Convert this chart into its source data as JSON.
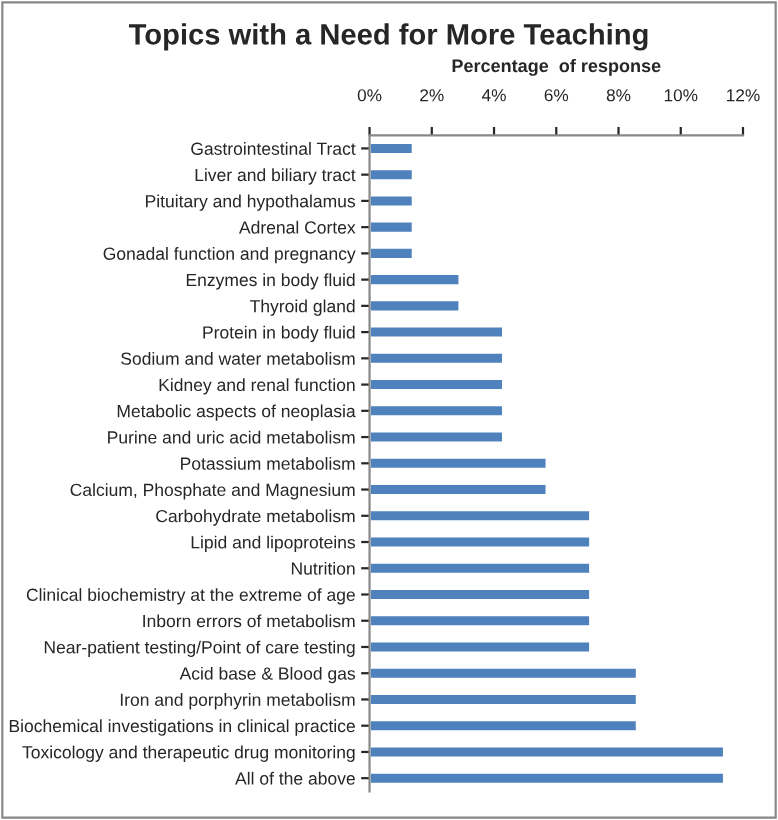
{
  "chart_data": {
    "type": "bar",
    "orientation": "horizontal",
    "title": "Topics with a Need for More Teaching",
    "xlabel": "Percentage  of response",
    "categories": [
      "Gastrointestinal Tract",
      "Liver and biliary tract",
      "Pituitary and hypothalamus",
      "Adrenal Cortex",
      "Gonadal function and pregnancy",
      "Enzymes in body fluid",
      "Thyroid gland",
      "Protein in body fluid",
      "Sodium and water metabolism",
      "Kidney and renal function",
      "Metabolic aspects of neoplasia",
      "Purine and uric acid metabolism",
      "Potassium metabolism",
      "Calcium, Phosphate and Magnesium",
      "Carbohydrate metabolism",
      "Lipid and lipoproteins",
      "Nutrition",
      "Clinical biochemistry at the extreme of age",
      "Inborn errors of metabolism",
      "Near-patient testing/Point of care testing",
      "Acid base & Blood gas",
      "Iron and porphyrin metabolism",
      "Biochemical investigations in clinical practice",
      "Toxicology and therapeutic drug monitoring",
      "All of the above"
    ],
    "values": [
      1.4,
      1.4,
      1.4,
      1.4,
      1.4,
      2.9,
      2.9,
      4.3,
      4.3,
      4.3,
      4.3,
      4.3,
      5.7,
      5.7,
      7.1,
      7.1,
      7.1,
      7.1,
      7.1,
      7.1,
      8.6,
      8.6,
      8.6,
      11.4,
      11.4
    ],
    "color": "#4f81bd",
    "xlim": [
      0,
      12
    ],
    "xticks": [
      {
        "value": 0,
        "label": "0%"
      },
      {
        "value": 2,
        "label": "2%"
      },
      {
        "value": 4,
        "label": "4%"
      },
      {
        "value": 6,
        "label": "6%"
      },
      {
        "value": 8,
        "label": "8%"
      },
      {
        "value": 10,
        "label": "10%"
      },
      {
        "value": 12,
        "label": "12%"
      }
    ],
    "grid": false,
    "legend": false
  }
}
